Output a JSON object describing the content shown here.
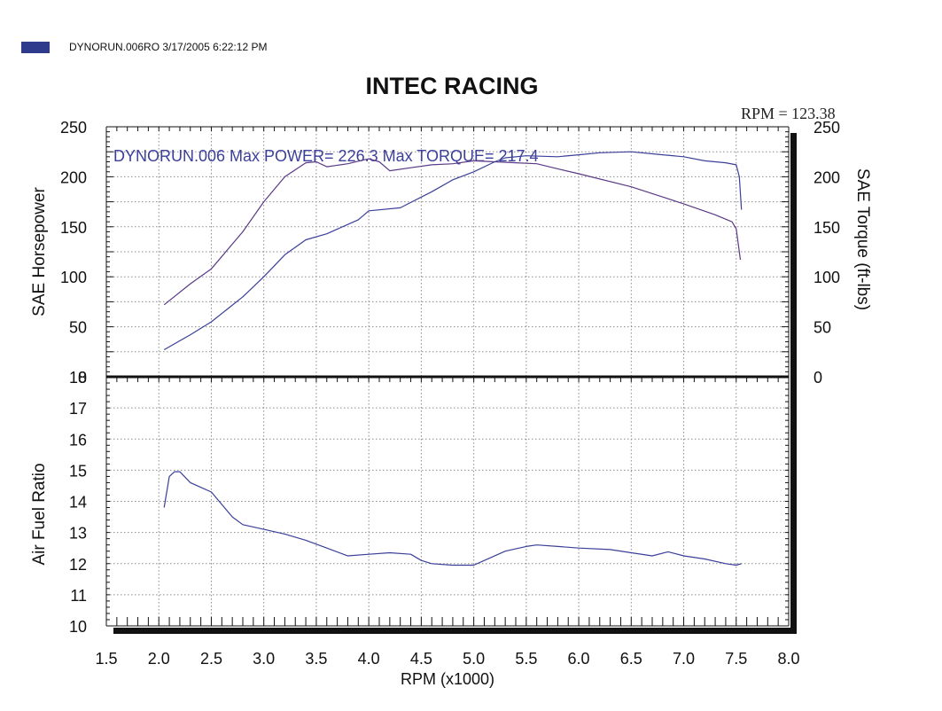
{
  "header": {
    "legend_label": "DYNORUN.006RO  3/17/2005 6:22:12 PM",
    "title": "INTEC RACING",
    "rpm_readout": "RPM = 123.38",
    "annotation": "DYNORUN.006  Max POWER= 226.3  Max TORQUE= 217.4"
  },
  "colors": {
    "series": "#3b3f9a",
    "series_alt": "#5a3a86",
    "legend": "#2e3a8c",
    "grid": "#8a8a8a",
    "axis": "#111111"
  },
  "chart_data": [
    {
      "type": "line",
      "panel": "top",
      "annotation": "DYNORUN.006  Max POWER= 226.3  Max TORQUE= 217.4",
      "xlabel": "RPM (x1000)",
      "ylabel": "SAE Horsepower",
      "y2label": "SAE Torque (ft-lbs)",
      "xlim": [
        1.5,
        8.0
      ],
      "ylim": [
        0,
        250
      ],
      "y2lim": [
        0,
        250
      ],
      "xticks": [
        "1.5",
        "2.0",
        "2.5",
        "3.0",
        "3.5",
        "4.0",
        "4.5",
        "5.0",
        "5.5",
        "6.0",
        "6.5",
        "7.0",
        "7.5",
        "8.0"
      ],
      "yticks": [
        "0",
        "50",
        "100",
        "150",
        "200",
        "250"
      ],
      "y2ticks": [
        "0",
        "50",
        "100",
        "150",
        "200",
        "250"
      ],
      "grid": true,
      "series": [
        {
          "axis": "right",
          "x": [
            2.05,
            2.3,
            2.5,
            2.8,
            3.0,
            3.2,
            3.4,
            3.5,
            3.6,
            3.8,
            4.0,
            4.1,
            4.2,
            4.4,
            4.6,
            4.8,
            5.0,
            5.2,
            5.4,
            5.6,
            5.8,
            6.0,
            6.5,
            7.0,
            7.3,
            7.46,
            7.5,
            7.54
          ],
          "y": [
            72,
            93,
            108,
            145,
            175,
            200,
            214,
            215,
            210,
            213,
            218,
            215,
            206,
            209,
            212,
            213,
            216,
            215,
            214,
            213,
            208,
            203,
            190,
            173,
            162,
            155,
            148,
            117
          ]
        },
        {
          "axis": "left",
          "x": [
            2.05,
            2.3,
            2.5,
            2.8,
            3.0,
            3.2,
            3.4,
            3.6,
            3.9,
            4.0,
            4.3,
            4.6,
            4.8,
            5.0,
            5.2,
            5.3,
            5.5,
            5.8,
            6.0,
            6.2,
            6.5,
            6.8,
            7.0,
            7.2,
            7.4,
            7.5,
            7.53,
            7.55
          ],
          "y": [
            27,
            42,
            55,
            80,
            100,
            122,
            137,
            143,
            157,
            166,
            169,
            185,
            197,
            205,
            215,
            219,
            221,
            220,
            222,
            224,
            225,
            222,
            220,
            216,
            214,
            212,
            200,
            167
          ]
        }
      ]
    },
    {
      "type": "line",
      "panel": "bottom",
      "xlabel": "RPM (x1000)",
      "ylabel": "Air Fuel Ratio",
      "xlim": [
        1.5,
        8.0
      ],
      "ylim": [
        10,
        18
      ],
      "xticks": [
        "1.5",
        "2.0",
        "2.5",
        "3.0",
        "3.5",
        "4.0",
        "4.5",
        "5.0",
        "5.5",
        "6.0",
        "6.5",
        "7.0",
        "7.5",
        "8.0"
      ],
      "yticks": [
        "10",
        "11",
        "12",
        "13",
        "14",
        "15",
        "16",
        "17",
        "18"
      ],
      "grid": true,
      "series": [
        {
          "x": [
            2.05,
            2.1,
            2.15,
            2.2,
            2.3,
            2.4,
            2.5,
            2.6,
            2.7,
            2.8,
            3.0,
            3.2,
            3.4,
            3.6,
            3.8,
            4.0,
            4.2,
            4.4,
            4.5,
            4.6,
            4.8,
            5.0,
            5.1,
            5.3,
            5.5,
            5.6,
            5.8,
            6.0,
            6.3,
            6.5,
            6.7,
            6.85,
            7.0,
            7.2,
            7.4,
            7.5,
            7.55
          ],
          "y": [
            13.8,
            14.8,
            14.95,
            14.95,
            14.6,
            14.45,
            14.3,
            13.9,
            13.5,
            13.25,
            13.1,
            12.95,
            12.75,
            12.5,
            12.25,
            12.3,
            12.35,
            12.3,
            12.1,
            12.0,
            11.95,
            11.95,
            12.1,
            12.4,
            12.55,
            12.6,
            12.55,
            12.5,
            12.45,
            12.35,
            12.25,
            12.38,
            12.25,
            12.15,
            12.0,
            11.95,
            12.0
          ]
        }
      ]
    }
  ]
}
